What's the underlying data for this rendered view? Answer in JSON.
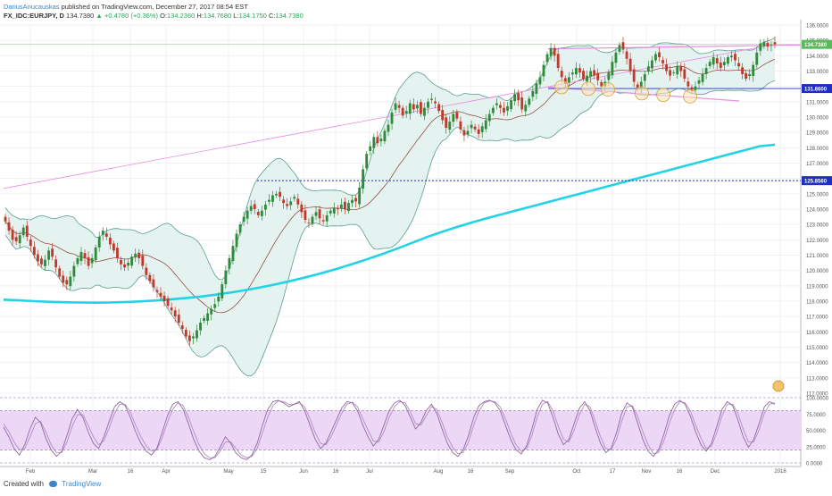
{
  "header": {
    "author": "DariusAnucauskas",
    "published": "published on TradingView.com, December 27, 2017 08:54 EST",
    "symbol": "FX_IDC:EURJPY, D",
    "last": "134.7380",
    "change": "+0.4780 (+0.36%)",
    "o_label": "O:",
    "o_val": "134.2360",
    "h_label": "H:",
    "h_val": "134.7680",
    "l_label": "L:",
    "l_val": "134.1750",
    "c_label": "C:",
    "c_val": "134.7380"
  },
  "footer": {
    "created": "Created with",
    "brand": "TradingView"
  },
  "colors": {
    "up": "#2e8b3a",
    "down": "#c0392b",
    "band_fill": "#e4f2f0",
    "band_line": "#5a9e8f",
    "sma200": "#22d3e6",
    "support": "#1f2fbf",
    "pink": "#e78de0",
    "rsi_fill": "#ecd7f7",
    "stoch_k": "#8e6a9e",
    "stoch_d": "#b58ac6"
  },
  "chart_data": [
    {
      "type": "candlestick",
      "title": "FX_IDC:EURJPY, D",
      "x_ticks": [
        "Feb",
        "Mar",
        "16",
        "Apr",
        "May",
        "15",
        "Jun",
        "16",
        "Jul",
        "Aug",
        "16",
        "Sep",
        "Oct",
        "17",
        "Nov",
        "16",
        "Dec",
        "2018"
      ],
      "y_ticks": [
        "136.0000",
        "135.0000",
        "134.0000",
        "133.0000",
        "132.0000",
        "131.0000",
        "130.0000",
        "129.0000",
        "128.0000",
        "127.0000",
        "126.0000",
        "125.0000",
        "124.0000",
        "123.0000",
        "122.0000",
        "121.0000",
        "120.0000",
        "119.0000",
        "118.0000",
        "117.0000",
        "116.0000",
        "115.0000",
        "114.0000",
        "113.0000",
        "112.0000"
      ],
      "ylim": [
        112.0,
        136.0
      ],
      "price_labels": {
        "last": "134.7380",
        "resistance": "131.8600",
        "support": "125.8560"
      },
      "levels": {
        "resistance": 131.86,
        "support": 125.856,
        "last": 134.738
      },
      "closes": [
        123.2,
        122.6,
        122.0,
        121.9,
        122.3,
        122.8,
        122.2,
        121.6,
        121.0,
        120.6,
        120.4,
        120.7,
        121.3,
        120.9,
        120.2,
        119.6,
        119.2,
        119.1,
        119.6,
        120.3,
        120.8,
        121.2,
        120.8,
        120.3,
        120.8,
        121.5,
        122.2,
        122.6,
        122.2,
        121.7,
        121.3,
        120.8,
        120.4,
        120.2,
        120.5,
        120.9,
        121.1,
        120.8,
        120.3,
        119.7,
        119.3,
        118.9,
        118.6,
        118.3,
        118.0,
        117.7,
        117.4,
        117.0,
        116.6,
        116.2,
        115.7,
        115.4,
        115.7,
        116.1,
        116.6,
        116.9,
        117.2,
        117.5,
        117.8,
        118.3,
        119.1,
        120.0,
        120.8,
        121.6,
        122.4,
        123.0,
        123.5,
        123.9,
        124.2,
        124.0,
        123.6,
        123.9,
        124.3,
        124.6,
        124.9,
        125.0,
        124.8,
        124.4,
        124.2,
        124.5,
        124.8,
        124.3,
        123.8,
        123.3,
        123.1,
        123.5,
        123.8,
        123.4,
        123.2,
        123.6,
        123.9,
        124.1,
        124.0,
        124.3,
        124.0,
        124.4,
        124.6,
        124.5,
        125.4,
        126.6,
        127.6,
        128.1,
        128.7,
        128.3,
        128.6,
        129.1,
        129.5,
        130.3,
        130.9,
        130.6,
        130.1,
        130.4,
        130.9,
        130.5,
        130.8,
        130.2,
        130.6,
        131.0,
        131.2,
        130.9,
        130.4,
        129.8,
        129.3,
        129.7,
        130.2,
        129.9,
        129.2,
        128.8,
        129.1,
        129.5,
        129.2,
        128.9,
        129.4,
        129.8,
        130.2,
        130.6,
        130.9,
        130.6,
        130.3,
        130.7,
        131.1,
        131.5,
        131.1,
        130.5,
        130.8,
        131.2,
        131.7,
        132.2,
        132.6,
        133.4,
        134.1,
        134.5,
        134.0,
        133.2,
        132.6,
        132.2,
        132.6,
        132.9,
        133.2,
        132.9,
        132.5,
        132.7,
        133.0,
        132.7,
        132.4,
        132.0,
        132.3,
        132.9,
        133.6,
        134.2,
        134.7,
        134.4,
        133.8,
        133.0,
        132.3,
        131.9,
        132.3,
        132.8,
        133.3,
        133.7,
        134.1,
        133.9,
        133.5,
        133.0,
        132.7,
        132.9,
        133.3,
        133.0,
        132.5,
        132.0,
        131.7,
        132.0,
        132.4,
        132.8,
        133.2,
        133.6,
        133.9,
        133.5,
        133.2,
        133.6,
        133.9,
        134.0,
        133.7,
        133.3,
        132.8,
        132.5,
        132.8,
        133.4,
        134.2,
        134.8,
        134.9,
        134.6,
        134.7,
        134.74
      ],
      "sma200": [
        118.1,
        118.05,
        118.0,
        117.96,
        117.93,
        117.91,
        117.9,
        117.91,
        117.94,
        117.98,
        118.04,
        118.11,
        118.2,
        118.3,
        118.42,
        118.56,
        118.72,
        118.9,
        119.1,
        119.32,
        119.56,
        119.82,
        120.1,
        120.4,
        120.72,
        121.06,
        121.42,
        121.8,
        122.18,
        122.52,
        122.84,
        123.14,
        123.42,
        123.68,
        123.94,
        124.2,
        124.46,
        124.72,
        124.98,
        125.24,
        125.5,
        125.76,
        126.02,
        126.28,
        126.54,
        126.8,
        127.06,
        127.32,
        127.58,
        127.84,
        128.1,
        128.2
      ],
      "annotations": "Pink rising trendline and horizontal pink resistance channel; orange circles mark touches of the lower band around 131.9"
    },
    {
      "type": "line",
      "title": "Stochastic RSI",
      "y_ticks": [
        "100.0000",
        "75.0000",
        "50.0000",
        "25.0000",
        "0.0000"
      ],
      "ylim": [
        0,
        100
      ],
      "series": [
        {
          "values": [
            55,
            40,
            22,
            12,
            28,
            52,
            70,
            62,
            38,
            20,
            10,
            18,
            42,
            68,
            82,
            70,
            48,
            30,
            22,
            40,
            64,
            86,
            94,
            88,
            70,
            48,
            30,
            18,
            12,
            22,
            46,
            72,
            90,
            94,
            82,
            60,
            36,
            18,
            8,
            5,
            10,
            24,
            40,
            30,
            15,
            8,
            5,
            12,
            30,
            58,
            82,
            94,
            96,
            92,
            86,
            90,
            94,
            80,
            58,
            36,
            22,
            30,
            48,
            66,
            84,
            94,
            92,
            80,
            58,
            40,
            26,
            36,
            58,
            80,
            92,
            96,
            88,
            70,
            52,
            62,
            80,
            90,
            76,
            52,
            30,
            16,
            10,
            20,
            42,
            70,
            88,
            94,
            96,
            92,
            80,
            58,
            36,
            20,
            14,
            26,
            52,
            82,
            96,
            92,
            70,
            44,
            28,
            36,
            60,
            84,
            94,
            80,
            54,
            30,
            16,
            22,
            46,
            76,
            92,
            86,
            62,
            36,
            18,
            10,
            20,
            44,
            72,
            90,
            96,
            90,
            72,
            48,
            28,
            18,
            30,
            56,
            82,
            94,
            88,
            66,
            40,
            24,
            36,
            60,
            86,
            94,
            90
          ]
        },
        {
          "values": [
            60,
            48,
            32,
            20,
            22,
            40,
            60,
            64,
            48,
            28,
            16,
            16,
            32,
            56,
            74,
            74,
            58,
            40,
            28,
            34,
            54,
            76,
            90,
            90,
            78,
            58,
            40,
            26,
            18,
            20,
            38,
            62,
            82,
            92,
            88,
            70,
            48,
            28,
            14,
            8,
            8,
            18,
            32,
            32,
            22,
            12,
            8,
            10,
            22,
            46,
            70,
            88,
            95,
            94,
            90,
            90,
            92,
            86,
            68,
            46,
            30,
            28,
            40,
            58,
            76,
            90,
            93,
            86,
            68,
            50,
            34,
            32,
            48,
            70,
            86,
            94,
            92,
            78,
            60,
            58,
            72,
            86,
            82,
            62,
            40,
            24,
            14,
            16,
            32,
            58,
            80,
            92,
            95,
            94,
            86,
            68,
            46,
            28,
            18,
            22,
            42,
            70,
            90,
            94,
            80,
            56,
            36,
            32,
            50,
            74,
            90,
            86,
            64,
            40,
            22,
            20,
            36,
            64,
            86,
            88,
            72,
            48,
            28,
            14,
            16,
            34,
            60,
            82,
            94,
            92,
            80,
            58,
            38,
            22,
            26,
            46,
            72,
            90,
            90,
            76,
            52,
            32,
            32,
            50,
            76,
            90,
            92
          ]
        }
      ]
    }
  ]
}
